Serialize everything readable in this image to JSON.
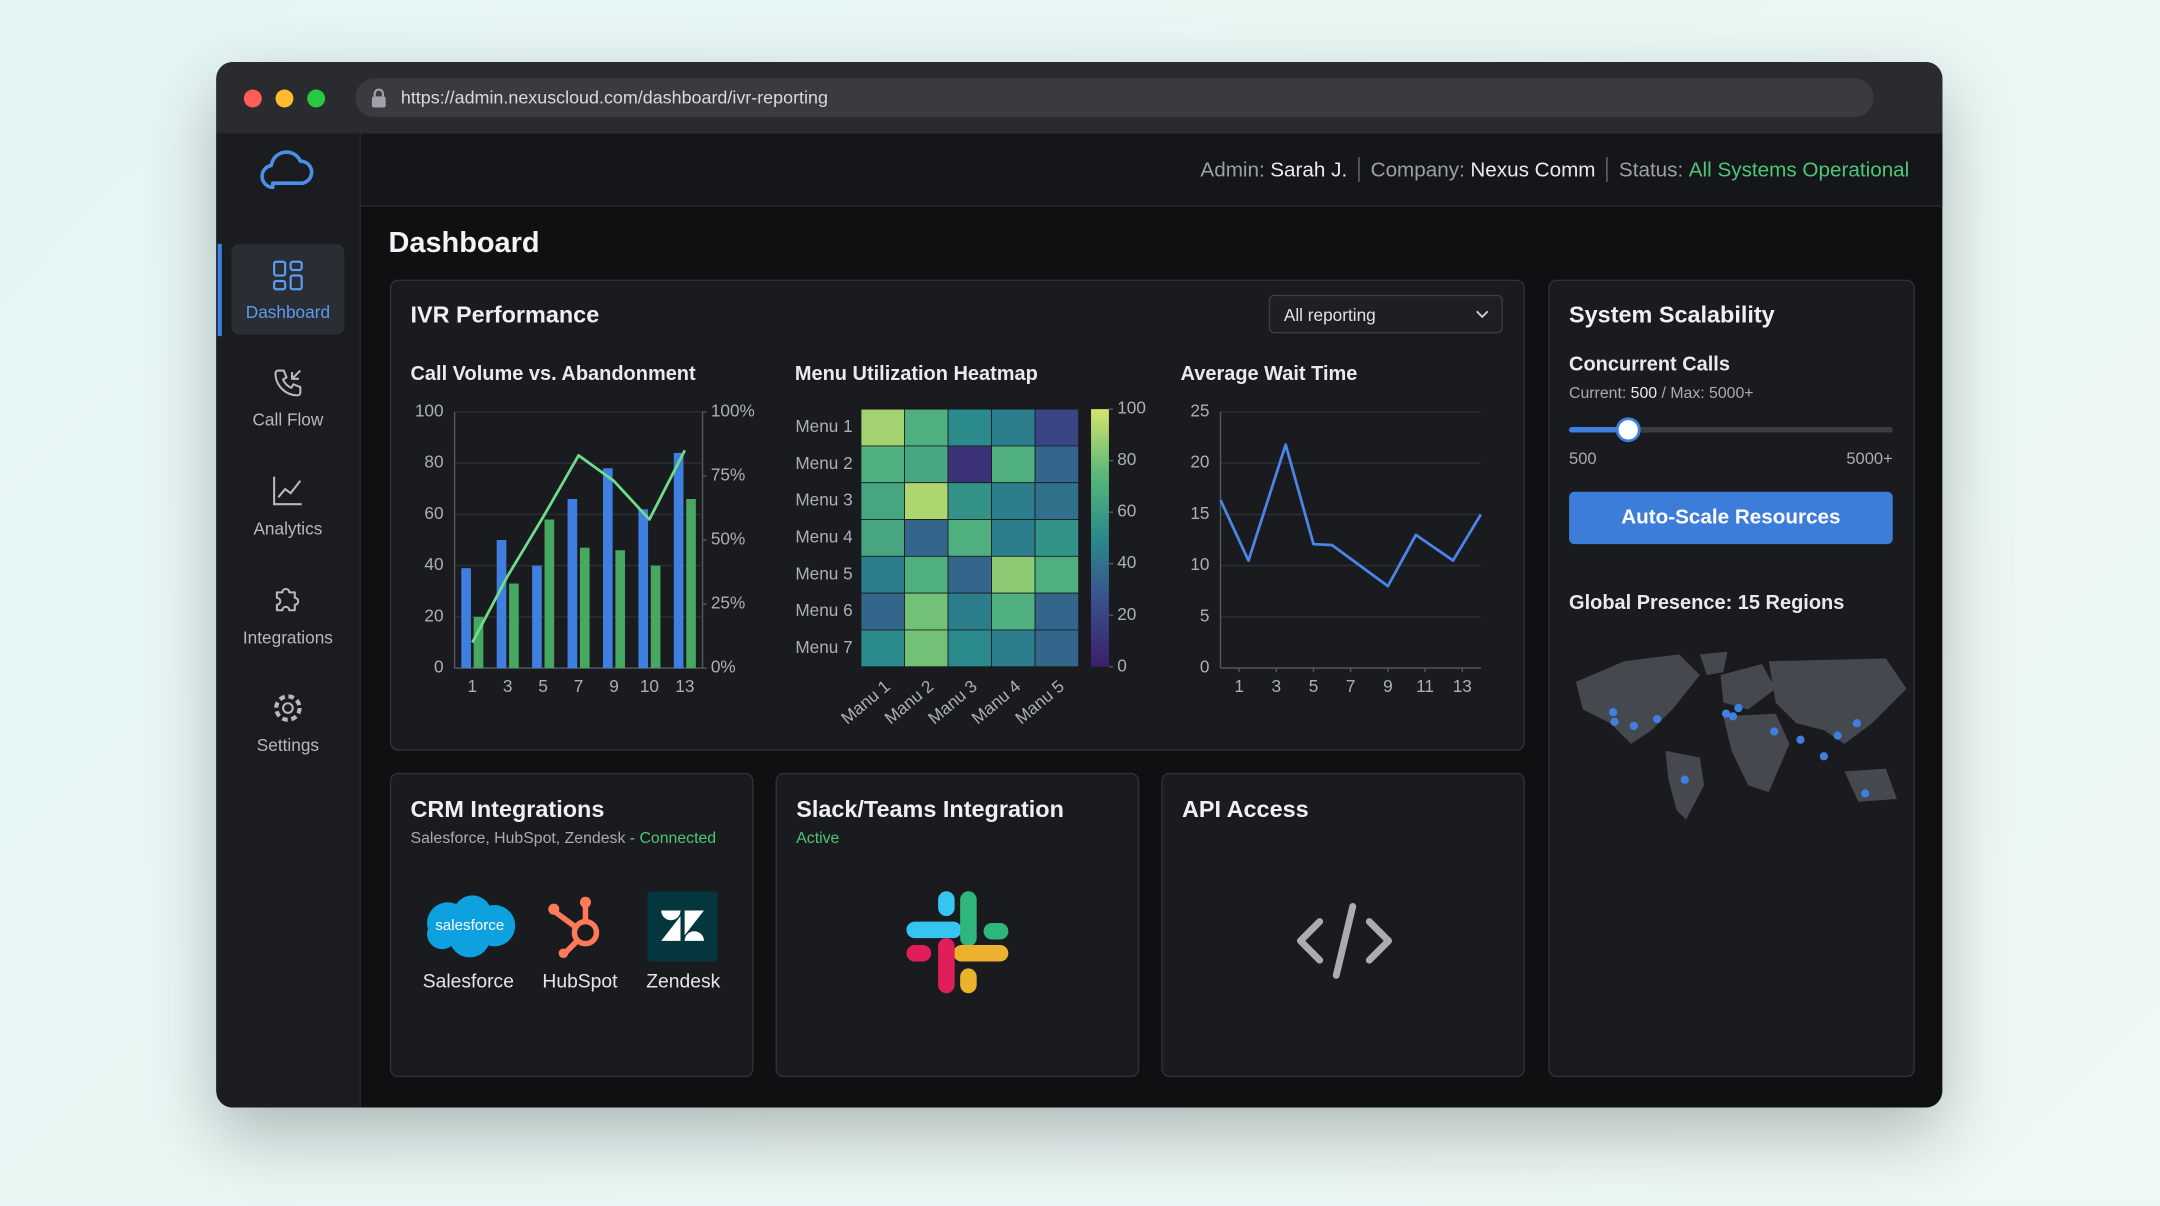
{
  "browser": {
    "url": "https://admin.nexuscloud.com/dashboard/ivr-reporting"
  },
  "header": {
    "admin_label": "Admin:",
    "admin": "Sarah J.",
    "company_label": "Company:",
    "company": "Nexus Comm",
    "status_label": "Status:",
    "status": "All Systems Operational"
  },
  "sidebar": {
    "items": [
      "Dashboard",
      "Call Flow",
      "Analytics",
      "Integrations",
      "Settings"
    ]
  },
  "page_title": "Dashboard",
  "ivr": {
    "title": "IVR Performance",
    "filter": "All reporting"
  },
  "chart_data": [
    {
      "type": "bar",
      "title": "Call Volume vs. Abandonment",
      "categories": [
        "1",
        "3",
        "5",
        "7",
        "9",
        "10",
        "13"
      ],
      "series": [
        {
          "color": "#3f7fe0",
          "values": [
            39,
            50,
            40,
            66,
            78,
            62,
            84
          ]
        },
        {
          "color": "#47a862",
          "values": [
            20,
            33,
            58,
            47,
            46,
            40,
            66
          ]
        },
        {
          "type": "line",
          "axis": "y2",
          "color": "#6fdc8c",
          "values": [
            10,
            36,
            59,
            83,
            73,
            58,
            85
          ]
        }
      ],
      "ylim": [
        0,
        100
      ],
      "yticks": [
        0,
        20,
        40,
        60,
        80,
        100
      ],
      "y2lim": [
        0,
        100
      ],
      "y2ticks": [
        {
          "value": 0,
          "label": "0%"
        },
        {
          "value": 25,
          "label": "25%"
        },
        {
          "value": 50,
          "label": "50%"
        },
        {
          "value": 75,
          "label": "75%"
        },
        {
          "value": 100,
          "label": "100%"
        }
      ],
      "grid": true
    },
    {
      "type": "heatmap",
      "title": "Menu Utilization Heatmap",
      "rows": [
        "Menu 1",
        "Menu 2",
        "Menu 3",
        "Menu 4",
        "Menu 5",
        "Menu 6",
        "Menu 7"
      ],
      "columns": [
        "Manu 1",
        "Manu 2",
        "Manu 3",
        "Manu 4",
        "Manu 5"
      ],
      "values": [
        [
          90,
          70,
          50,
          45,
          20
        ],
        [
          70,
          65,
          10,
          70,
          35
        ],
        [
          65,
          92,
          55,
          45,
          40
        ],
        [
          65,
          35,
          70,
          45,
          55
        ],
        [
          45,
          70,
          35,
          85,
          70
        ],
        [
          35,
          80,
          45,
          70,
          35
        ],
        [
          50,
          80,
          50,
          45,
          35
        ]
      ],
      "zlim": [
        0,
        100
      ],
      "zticks": [
        0,
        20,
        40,
        60,
        80,
        100
      ],
      "colorscale": [
        "#3b1f6b",
        "#3a4e8c",
        "#2a8a8c",
        "#5ab87a",
        "#d6e46a"
      ]
    },
    {
      "type": "line",
      "title": "Average Wait Time",
      "x": [
        0,
        1.5,
        3.5,
        5,
        6,
        9,
        10.5,
        12.5,
        14
      ],
      "values": [
        16.4,
        10.5,
        21.8,
        12.1,
        12,
        8,
        13,
        10.5,
        15
      ],
      "color": "#4a86e8",
      "xlim": [
        0,
        14
      ],
      "xticks": [
        1,
        3,
        5,
        7,
        9,
        11,
        13
      ],
      "ylim": [
        0,
        25
      ],
      "yticks": [
        0,
        5,
        10,
        15,
        20,
        25
      ],
      "grid": true
    }
  ],
  "scalability": {
    "title": "System Scalability",
    "concurrent_title": "Concurrent Calls",
    "current_label": "Current:",
    "current": "500",
    "max_label": "/ Max: 5000+",
    "slider_min": "500",
    "slider_max": "5000+",
    "button": "Auto-Scale Resources",
    "presence": "Global Presence: 15 Regions"
  },
  "crm": {
    "title": "CRM Integrations",
    "subtitle": "Salesforce, HubSpot, Zendesk -",
    "status": "Connected",
    "logo_text": "salesforce",
    "apps": [
      "Salesforce",
      "HubSpot",
      "Zendesk"
    ]
  },
  "slack": {
    "title": "Slack/Teams Integration",
    "status": "Active"
  },
  "api": {
    "title": "API Access"
  }
}
